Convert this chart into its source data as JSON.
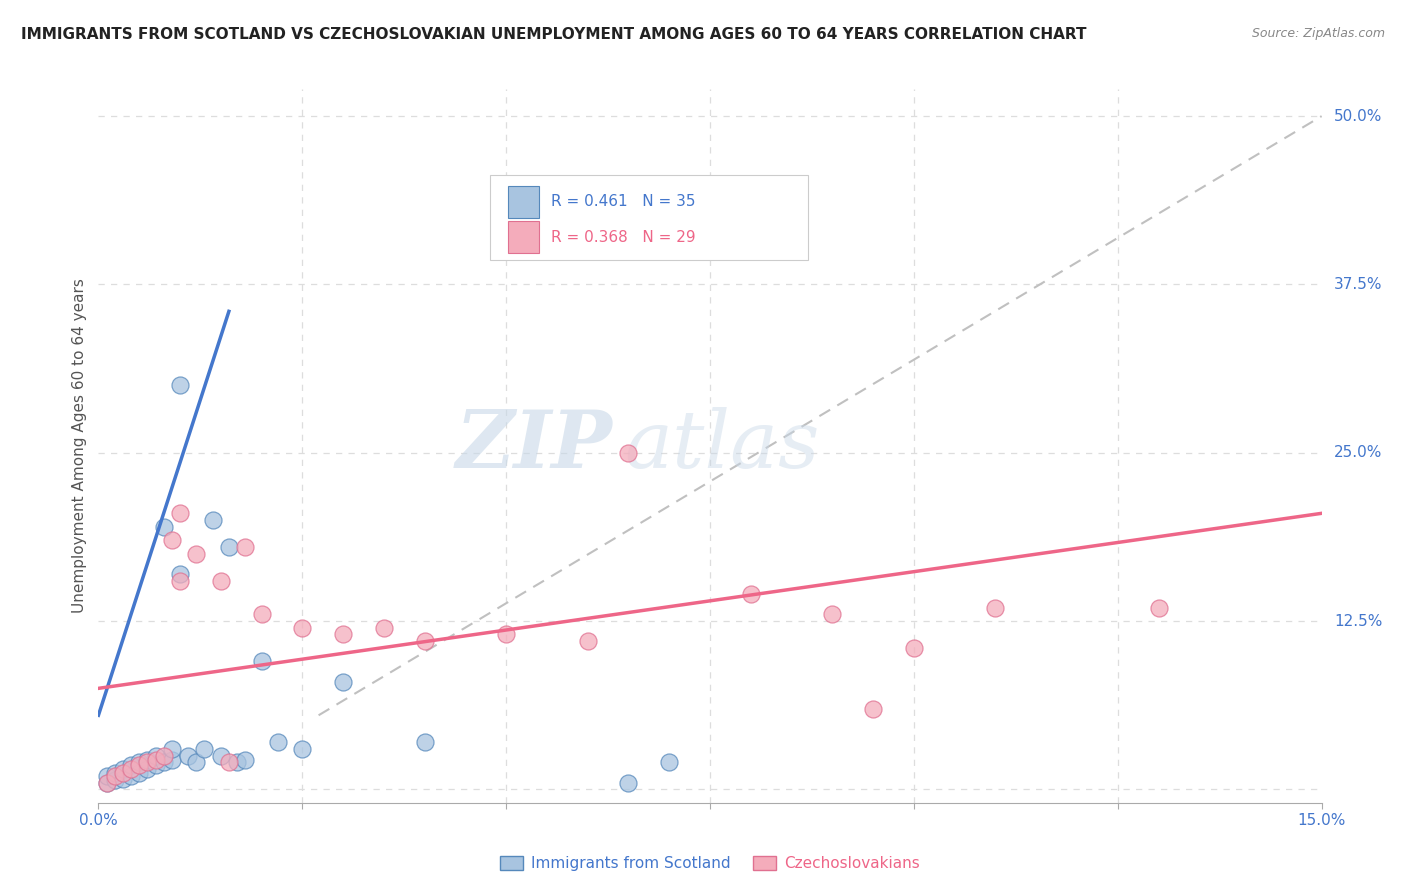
{
  "title": "IMMIGRANTS FROM SCOTLAND VS CZECHOSLOVAKIAN UNEMPLOYMENT AMONG AGES 60 TO 64 YEARS CORRELATION CHART",
  "source": "Source: ZipAtlas.com",
  "ylabel": "Unemployment Among Ages 60 to 64 years",
  "xlim": [
    0.0,
    0.15
  ],
  "ylim": [
    -0.01,
    0.52
  ],
  "xticks": [
    0.0,
    0.025,
    0.05,
    0.075,
    0.1,
    0.125,
    0.15
  ],
  "xtick_labels": [
    "0.0%",
    "",
    "",
    "",
    "",
    "",
    "15.0%"
  ],
  "ytick_labels_right": [
    "",
    "12.5%",
    "25.0%",
    "37.5%",
    "50.0%"
  ],
  "yticks_right": [
    0.0,
    0.125,
    0.25,
    0.375,
    0.5
  ],
  "blue_color": "#A8C4E0",
  "pink_color": "#F4ACBB",
  "blue_edge_color": "#5588BB",
  "pink_edge_color": "#E07090",
  "blue_line_color": "#4477CC",
  "pink_line_color": "#EE6688",
  "trend_line_color": "#C0C0C0",
  "background_color": "#FFFFFF",
  "grid_color": "#DDDDDD",
  "watermark_zip": "ZIP",
  "watermark_atlas": "atlas",
  "scotland_points": [
    [
      0.001,
      0.005
    ],
    [
      0.001,
      0.01
    ],
    [
      0.002,
      0.007
    ],
    [
      0.002,
      0.012
    ],
    [
      0.003,
      0.008
    ],
    [
      0.003,
      0.015
    ],
    [
      0.004,
      0.01
    ],
    [
      0.004,
      0.018
    ],
    [
      0.005,
      0.012
    ],
    [
      0.005,
      0.02
    ],
    [
      0.006,
      0.015
    ],
    [
      0.006,
      0.022
    ],
    [
      0.007,
      0.018
    ],
    [
      0.007,
      0.025
    ],
    [
      0.008,
      0.02
    ],
    [
      0.008,
      0.195
    ],
    [
      0.009,
      0.022
    ],
    [
      0.009,
      0.03
    ],
    [
      0.01,
      0.16
    ],
    [
      0.01,
      0.3
    ],
    [
      0.011,
      0.025
    ],
    [
      0.012,
      0.02
    ],
    [
      0.013,
      0.03
    ],
    [
      0.014,
      0.2
    ],
    [
      0.015,
      0.025
    ],
    [
      0.016,
      0.18
    ],
    [
      0.017,
      0.02
    ],
    [
      0.018,
      0.022
    ],
    [
      0.02,
      0.095
    ],
    [
      0.022,
      0.035
    ],
    [
      0.025,
      0.03
    ],
    [
      0.03,
      0.08
    ],
    [
      0.04,
      0.035
    ],
    [
      0.065,
      0.005
    ],
    [
      0.07,
      0.02
    ]
  ],
  "czech_points": [
    [
      0.001,
      0.005
    ],
    [
      0.002,
      0.01
    ],
    [
      0.003,
      0.012
    ],
    [
      0.004,
      0.015
    ],
    [
      0.005,
      0.018
    ],
    [
      0.006,
      0.02
    ],
    [
      0.007,
      0.022
    ],
    [
      0.008,
      0.025
    ],
    [
      0.009,
      0.185
    ],
    [
      0.01,
      0.155
    ],
    [
      0.01,
      0.205
    ],
    [
      0.012,
      0.175
    ],
    [
      0.015,
      0.155
    ],
    [
      0.016,
      0.02
    ],
    [
      0.018,
      0.18
    ],
    [
      0.02,
      0.13
    ],
    [
      0.025,
      0.12
    ],
    [
      0.03,
      0.115
    ],
    [
      0.035,
      0.12
    ],
    [
      0.04,
      0.11
    ],
    [
      0.05,
      0.115
    ],
    [
      0.06,
      0.11
    ],
    [
      0.065,
      0.25
    ],
    [
      0.08,
      0.145
    ],
    [
      0.09,
      0.13
    ],
    [
      0.095,
      0.06
    ],
    [
      0.1,
      0.105
    ],
    [
      0.11,
      0.135
    ],
    [
      0.13,
      0.135
    ]
  ],
  "scotland_trend_x": [
    0.0,
    0.016
  ],
  "scotland_trend_y": [
    0.055,
    0.355
  ],
  "czech_trend_x": [
    0.0,
    0.15
  ],
  "czech_trend_y": [
    0.075,
    0.205
  ],
  "diag_trend_x": [
    0.027,
    0.15
  ],
  "diag_trend_y": [
    0.055,
    0.5
  ]
}
